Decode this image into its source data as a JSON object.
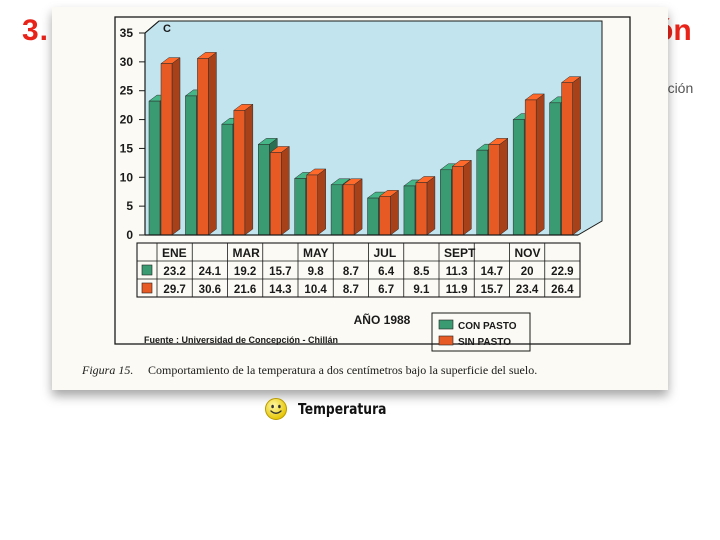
{
  "slide": {
    "number": "3.",
    "title_suffix": "ón",
    "side_text": "dación",
    "caption": "Temperatura",
    "caption_icon": "smiley-icon"
  },
  "chart_data": {
    "type": "bar",
    "ylabel": "C",
    "ylim": [
      0,
      35
    ],
    "yticks": [
      0,
      5,
      10,
      15,
      20,
      25,
      30,
      35
    ],
    "categories": [
      "ENE",
      "",
      "MAR",
      "",
      "MAY",
      "",
      "JUL",
      "",
      "SEPT",
      "",
      "NOV",
      ""
    ],
    "xlabel": "AÑO 1988",
    "series": [
      {
        "name": "CON PASTO",
        "color": "#3a9a72",
        "values": [
          23.2,
          24.1,
          19.2,
          15.7,
          9.8,
          8.7,
          6.4,
          8.5,
          11.3,
          14.7,
          20,
          22.9
        ]
      },
      {
        "name": "SIN PASTO",
        "color": "#e85a24",
        "values": [
          29.7,
          30.6,
          21.6,
          14.3,
          10.4,
          8.7,
          6.7,
          9.1,
          11.9,
          15.7,
          23.4,
          26.4
        ]
      }
    ],
    "table_values": [
      [
        "23.2",
        "24.1",
        "19.2",
        "15.7",
        "9.8",
        "8.7",
        "6.4",
        "8.5",
        "11.3",
        "14.7",
        "20",
        "22.9"
      ],
      [
        "29.7",
        "30.6",
        "21.6",
        "14.3",
        "10.4",
        "8.7",
        "6.7",
        "9.1",
        "11.9",
        "15.7",
        "23.4",
        "26.4"
      ]
    ],
    "source": "Fuente : Universidad de Concepción - Chillán",
    "figure_label": "Figura 15.",
    "figure_caption": "Comportamiento de la temperatura a dos centímetros bajo la superficie del suelo.",
    "legend_position": "bottom-right",
    "grid": false
  },
  "colors": {
    "panel": "#c2e4ef",
    "border": "#1a1a1a",
    "title": "#e8231a"
  }
}
